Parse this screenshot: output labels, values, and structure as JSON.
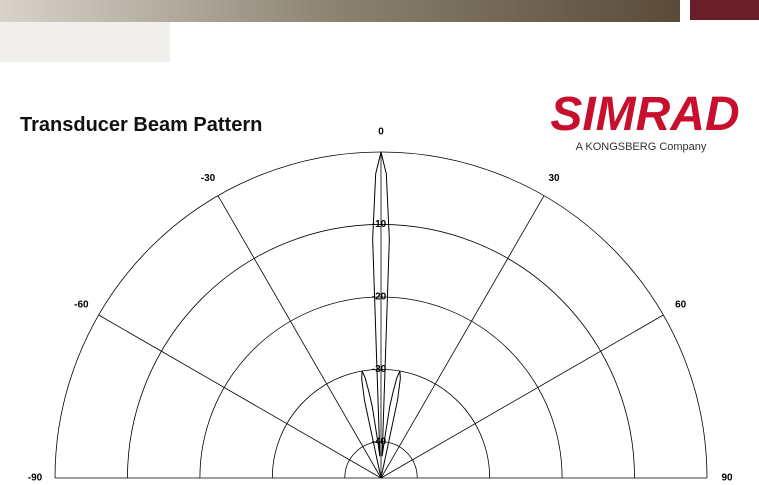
{
  "logo": {
    "name": "SIMRAD",
    "tagline": "A KONGSBERG Company"
  },
  "chart_data": {
    "type": "polar",
    "title": "Transducer Beam Pattern",
    "thetaticks": [
      -90,
      -60,
      -30,
      0,
      30,
      60,
      90
    ],
    "rlim": [
      -45,
      0
    ],
    "rticks": [
      -10,
      -20,
      -30,
      -40
    ],
    "grid": true,
    "series": [
      {
        "color": "#000000",
        "theta": [
          -14,
          -12,
          -11,
          -10,
          -9,
          -8,
          -7,
          -5,
          -3,
          -2,
          -1,
          0,
          1,
          2,
          3,
          5,
          7,
          8,
          9,
          10,
          11,
          12,
          14
        ],
        "values": [
          -45,
          -34,
          -31,
          -30,
          -31,
          -33,
          -35,
          -40,
          -42,
          -12,
          -3,
          0,
          -3,
          -12,
          -42,
          -40,
          -35,
          -33,
          -31,
          -30,
          -31,
          -34,
          -45
        ]
      }
    ]
  }
}
